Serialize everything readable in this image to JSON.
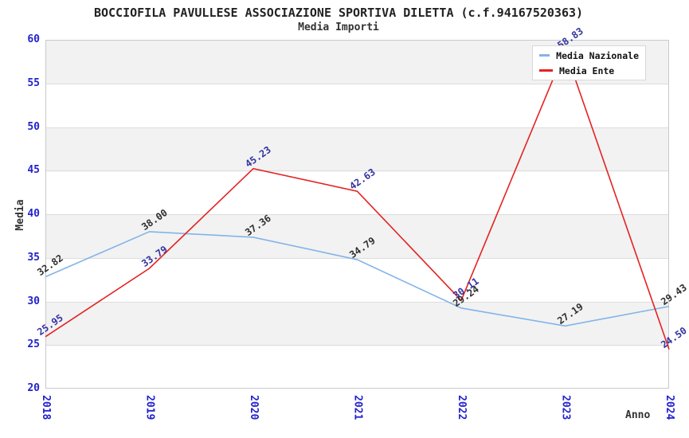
{
  "header": {
    "title": "BOCCIOFILA PAVULLESE ASSOCIAZIONE SPORTIVA DILETTA (c.f.94167520363)",
    "subtitle": "Media Importi"
  },
  "chart_data": {
    "type": "line",
    "x": [
      "2018",
      "2019",
      "2020",
      "2021",
      "2022",
      "2023",
      "2024"
    ],
    "xlabel": "Anno",
    "ylabel": "Media",
    "ylim": [
      20,
      60
    ],
    "ytick_step": 5,
    "grid": "horizontal-bands",
    "legend_position": "top-right",
    "series": [
      {
        "name": "Media Nazionale",
        "color": "#82b4e8",
        "label_color": "#2f2f2f",
        "values": [
          32.82,
          38.0,
          37.36,
          34.79,
          29.24,
          27.19,
          29.43
        ]
      },
      {
        "name": "Media Ente",
        "color": "#e42222",
        "label_color": "#3434a0",
        "values": [
          25.95,
          33.79,
          45.23,
          42.63,
          30.11,
          58.83,
          24.5
        ]
      }
    ],
    "colors": {
      "tick_label": "#2222cc",
      "band_gray": "#f2f2f2",
      "band_white": "#ffffff",
      "gridline": "#dddddd",
      "plot_border": "#c9c9c9",
      "title_text": "#222222"
    }
  }
}
